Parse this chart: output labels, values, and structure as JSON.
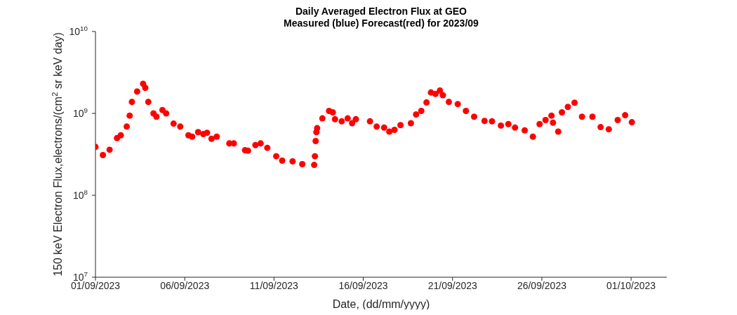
{
  "chart_data": {
    "type": "scatter",
    "title": "Daily Averaged Electron Flux at GEO",
    "subtitle": "Measured (blue) Forecast(red) for 2023/09",
    "xlabel": "Date, (dd/mm/yyyy)",
    "ylabel": "150 keV Electron Flux,electrons/(cm$^{2}$ sr keV day)",
    "log": "y",
    "grid": false,
    "legend": false,
    "marker": "circle",
    "xlim": [
      "2023-09-01",
      "2023-10-03"
    ],
    "xticks": [
      {
        "value": "2023-09-01",
        "label": "01/09/2023"
      },
      {
        "value": "2023-09-06",
        "label": "06/09/2023"
      },
      {
        "value": "2023-09-11",
        "label": "11/09/2023"
      },
      {
        "value": "2023-09-16",
        "label": "16/09/2023"
      },
      {
        "value": "2023-09-21",
        "label": "21/09/2023"
      },
      {
        "value": "2023-09-26",
        "label": "26/09/2023"
      },
      {
        "value": "2023-10-01",
        "label": "01/10/2023"
      }
    ],
    "ylim": [
      10000000,
      10000000000
    ],
    "yticks": [
      {
        "value": 10000000,
        "label": "10$^{7}$"
      },
      {
        "value": 100000000,
        "label": "10$^{8}$"
      },
      {
        "value": 1000000000,
        "label": "10$^{9}$"
      },
      {
        "value": 10000000000,
        "label": "10$^{10}$"
      }
    ],
    "series": [
      {
        "color": "#ff0000",
        "x": [
          "2023-09-01T00:00",
          "2023-09-01T10:00",
          "2023-09-01T19:00",
          "2023-09-02T05:00",
          "2023-09-02T10:00",
          "2023-09-02T18:00",
          "2023-09-02T22:00",
          "2023-09-03T01:00",
          "2023-09-03T08:00",
          "2023-09-03T16:00",
          "2023-09-03T19:00",
          "2023-09-03T23:00",
          "2023-09-04T06:00",
          "2023-09-04T10:00",
          "2023-09-04T18:00",
          "2023-09-04T23:00",
          "2023-09-05T09:00",
          "2023-09-05T18:00",
          "2023-09-06T05:00",
          "2023-09-06T10:00",
          "2023-09-06T18:00",
          "2023-09-07T01:00",
          "2023-09-07T06:00",
          "2023-09-07T12:00",
          "2023-09-07T19:00",
          "2023-09-08T12:00",
          "2023-09-08T18:00",
          "2023-09-09T09:00",
          "2023-09-09T13:00",
          "2023-09-09T23:00",
          "2023-09-10T06:00",
          "2023-09-10T15:00",
          "2023-09-11T03:00",
          "2023-09-11T11:00",
          "2023-09-12T01:00",
          "2023-09-12T14:00",
          "2023-09-13T06:00",
          "2023-09-13T07:00",
          "2023-09-13T08:00",
          "2023-09-13T09:00",
          "2023-09-13T10:00",
          "2023-09-13T17:00",
          "2023-09-14T02:00",
          "2023-09-14T07:00",
          "2023-09-14T10:00",
          "2023-09-14T19:00",
          "2023-09-15T03:00",
          "2023-09-15T09:00",
          "2023-09-15T14:00",
          "2023-09-16T09:00",
          "2023-09-16T18:00",
          "2023-09-17T04:00",
          "2023-09-17T11:00",
          "2023-09-17T18:00",
          "2023-09-18T02:00",
          "2023-09-18T16:00",
          "2023-09-18T23:00",
          "2023-09-19T06:00",
          "2023-09-19T13:00",
          "2023-09-19T19:00",
          "2023-09-20T01:00",
          "2023-09-20T07:00",
          "2023-09-20T11:00",
          "2023-09-20T19:00",
          "2023-09-21T07:00",
          "2023-09-21T18:00",
          "2023-09-22T05:00",
          "2023-09-22T19:00",
          "2023-09-23T05:00",
          "2023-09-23T17:00",
          "2023-09-24T03:00",
          "2023-09-24T12:00",
          "2023-09-25T01:00",
          "2023-09-25T12:00",
          "2023-09-25T21:00",
          "2023-09-26T05:00",
          "2023-09-26T13:00",
          "2023-09-26T15:00",
          "2023-09-26T22:00",
          "2023-09-27T03:00",
          "2023-09-27T11:00",
          "2023-09-27T20:00",
          "2023-09-28T06:00",
          "2023-09-28T20:00",
          "2023-09-29T07:00",
          "2023-09-29T18:00",
          "2023-09-30T06:00",
          "2023-09-30T16:00",
          "2023-10-01T01:00"
        ],
        "values": [
          390000000,
          310000000,
          360000000,
          500000000,
          540000000,
          690000000,
          940000000,
          1380000000,
          1850000000,
          2300000000,
          2050000000,
          1380000000,
          1000000000,
          910000000,
          1100000000,
          1000000000,
          750000000,
          690000000,
          540000000,
          520000000,
          590000000,
          560000000,
          580000000,
          490000000,
          520000000,
          430000000,
          430000000,
          355000000,
          350000000,
          410000000,
          430000000,
          380000000,
          300000000,
          265000000,
          260000000,
          240000000,
          235000000,
          300000000,
          460000000,
          590000000,
          660000000,
          870000000,
          1070000000,
          1030000000,
          850000000,
          800000000,
          870000000,
          760000000,
          850000000,
          800000000,
          690000000,
          670000000,
          600000000,
          630000000,
          720000000,
          760000000,
          970000000,
          1070000000,
          1360000000,
          1800000000,
          1730000000,
          1900000000,
          1670000000,
          1380000000,
          1300000000,
          1070000000,
          910000000,
          810000000,
          800000000,
          710000000,
          740000000,
          670000000,
          620000000,
          520000000,
          740000000,
          830000000,
          940000000,
          770000000,
          600000000,
          1030000000,
          1200000000,
          1350000000,
          910000000,
          910000000,
          680000000,
          640000000,
          830000000,
          950000000,
          780000000
        ]
      }
    ]
  }
}
